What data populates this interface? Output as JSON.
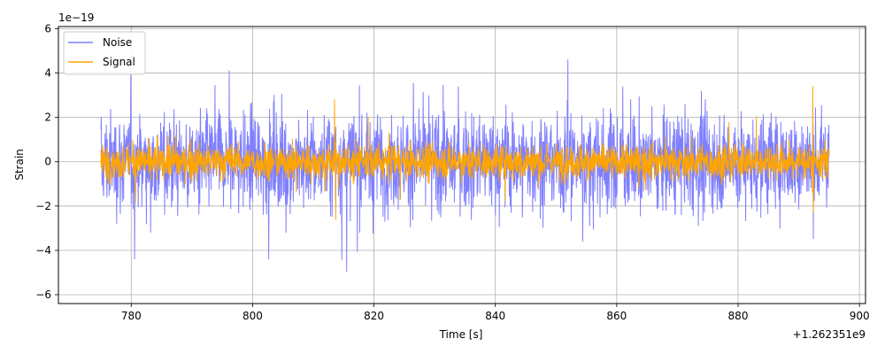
{
  "chart_data": {
    "type": "line",
    "xlabel": "Time [s]",
    "ylabel": "Strain",
    "x_offset_label": "+1.262351e9",
    "y_scale_label": "1e−19",
    "xlim": [
      768,
      901
    ],
    "ylim": [
      -6.4,
      6.1
    ],
    "x_ticks": [
      780,
      800,
      820,
      840,
      860,
      880,
      900
    ],
    "y_ticks": [
      -6,
      -4,
      -2,
      0,
      2,
      4,
      6
    ],
    "x_tick_labels": [
      "780",
      "800",
      "820",
      "840",
      "860",
      "880",
      "900"
    ],
    "y_tick_labels": [
      "−6",
      "−4",
      "−2",
      "0",
      "2",
      "4",
      "6"
    ],
    "grid": true,
    "legend_position": "upper-left",
    "series": [
      {
        "name": "Noise",
        "color": "#7f7ffe",
        "x_range": [
          775,
          895
        ],
        "envelope": {
          "typical_amplitude": 2.0,
          "max": 4.6,
          "min": -5.8
        }
      },
      {
        "name": "Signal",
        "color": "#ffa500",
        "x_range": [
          775,
          895
        ],
        "envelope": {
          "typical_amplitude": 0.7,
          "max": 3.4,
          "min": -2.6
        },
        "peaks": [
          {
            "x": 813.5,
            "value": 2.8
          },
          {
            "x": 813.7,
            "value": -2.6
          },
          {
            "x": 892.3,
            "value": 3.4
          },
          {
            "x": 892.4,
            "value": -2.3
          }
        ]
      }
    ]
  }
}
